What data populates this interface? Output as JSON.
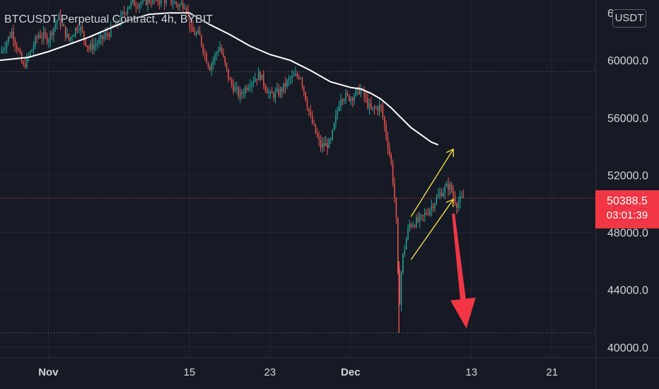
{
  "chart_data": {
    "type": "candlestick",
    "title": "BTCUSDT Perpetual Contract, 4h, BYBIT",
    "currency": "USDT",
    "last_price": "50388.5",
    "countdown": "03:01:39",
    "y_ticks": [
      {
        "value": 60000,
        "label": "60000.0"
      },
      {
        "value": 56000,
        "label": "56000.0"
      },
      {
        "value": 52000,
        "label": "52000.0"
      },
      {
        "value": 48000,
        "label": "48000.0"
      },
      {
        "value": 44000,
        "label": "44000.0"
      },
      {
        "value": 40000,
        "label": "40000.0"
      }
    ],
    "y_top_partial_label": "6",
    "x_ticks": [
      {
        "day": 0,
        "label": "Nov",
        "bold": true
      },
      {
        "day": 14,
        "label": "15",
        "bold": false
      },
      {
        "day": 22,
        "label": "23",
        "bold": false
      },
      {
        "day": 30,
        "label": "Dec",
        "bold": true
      },
      {
        "day": 42,
        "label": "13",
        "bold": false
      },
      {
        "day": 50,
        "label": "21",
        "bold": false
      }
    ],
    "ylim": [
      39300,
      64200
    ],
    "xlim": [
      -4.8,
      54.3
    ],
    "reference_lines": [
      59200,
      41000
    ],
    "price_series": [
      [
        -4.8,
        60500
      ],
      [
        -3.6,
        62000
      ],
      [
        -2.5,
        59500
      ],
      [
        -1.8,
        60500
      ],
      [
        -1,
        61800
      ],
      [
        0,
        61500
      ],
      [
        1,
        63000
      ],
      [
        2,
        61400
      ],
      [
        3,
        62500
      ],
      [
        4,
        60800
      ],
      [
        5,
        61300
      ],
      [
        6,
        61900
      ],
      [
        7,
        62700
      ],
      [
        8,
        63900
      ],
      [
        9,
        64000
      ],
      [
        10,
        64200
      ],
      [
        11,
        64200
      ],
      [
        12,
        64200
      ],
      [
        13,
        63800
      ],
      [
        13.6,
        64000
      ],
      [
        14.2,
        62000
      ],
      [
        15,
        61700
      ],
      [
        15.5,
        60500
      ],
      [
        16,
        59500
      ],
      [
        17,
        61000
      ],
      [
        18,
        58500
      ],
      [
        19,
        57500
      ],
      [
        20,
        58500
      ],
      [
        21,
        59000
      ],
      [
        22,
        57500
      ],
      [
        23,
        57800
      ],
      [
        24,
        58700
      ],
      [
        25,
        59000
      ],
      [
        26,
        56000
      ],
      [
        27,
        54000
      ],
      [
        28,
        54200
      ],
      [
        29,
        57500
      ],
      [
        30,
        57400
      ],
      [
        31,
        58000
      ],
      [
        32,
        56500
      ],
      [
        33,
        56800
      ],
      [
        34,
        53000
      ],
      [
        34.5,
        49500
      ],
      [
        34.8,
        42500
      ],
      [
        35.1,
        46000
      ],
      [
        35.8,
        48500
      ],
      [
        37,
        48900
      ],
      [
        38,
        49800
      ],
      [
        39,
        50800
      ],
      [
        39.8,
        51300
      ],
      [
        40.5,
        50000
      ],
      [
        41.2,
        50388
      ]
    ],
    "moving_average": [
      [
        -4.8,
        60000
      ],
      [
        -2,
        60200
      ],
      [
        0,
        60600
      ],
      [
        2,
        61100
      ],
      [
        4,
        61600
      ],
      [
        6,
        62200
      ],
      [
        8,
        62800
      ],
      [
        10,
        63200
      ],
      [
        12,
        63300
      ],
      [
        14,
        63300
      ],
      [
        16,
        62500
      ],
      [
        18,
        61800
      ],
      [
        20,
        61000
      ],
      [
        22,
        60400
      ],
      [
        24,
        60000
      ],
      [
        26,
        59300
      ],
      [
        28,
        58500
      ],
      [
        30,
        58100
      ],
      [
        31,
        58000
      ],
      [
        32,
        57700
      ],
      [
        33,
        57300
      ],
      [
        34,
        56700
      ],
      [
        35,
        56000
      ],
      [
        36,
        55300
      ],
      [
        37,
        54800
      ],
      [
        38,
        54300
      ],
      [
        38.7,
        54100
      ]
    ],
    "channel_upper": {
      "from": [
        36,
        49100
      ],
      "to": [
        40.2,
        53800
      ]
    },
    "channel_lower": {
      "from": [
        36,
        46100
      ],
      "to": [
        40.2,
        50300
      ]
    },
    "projection_arrow": {
      "from": [
        40.2,
        49300
      ],
      "to": [
        41.5,
        41300
      ]
    }
  }
}
